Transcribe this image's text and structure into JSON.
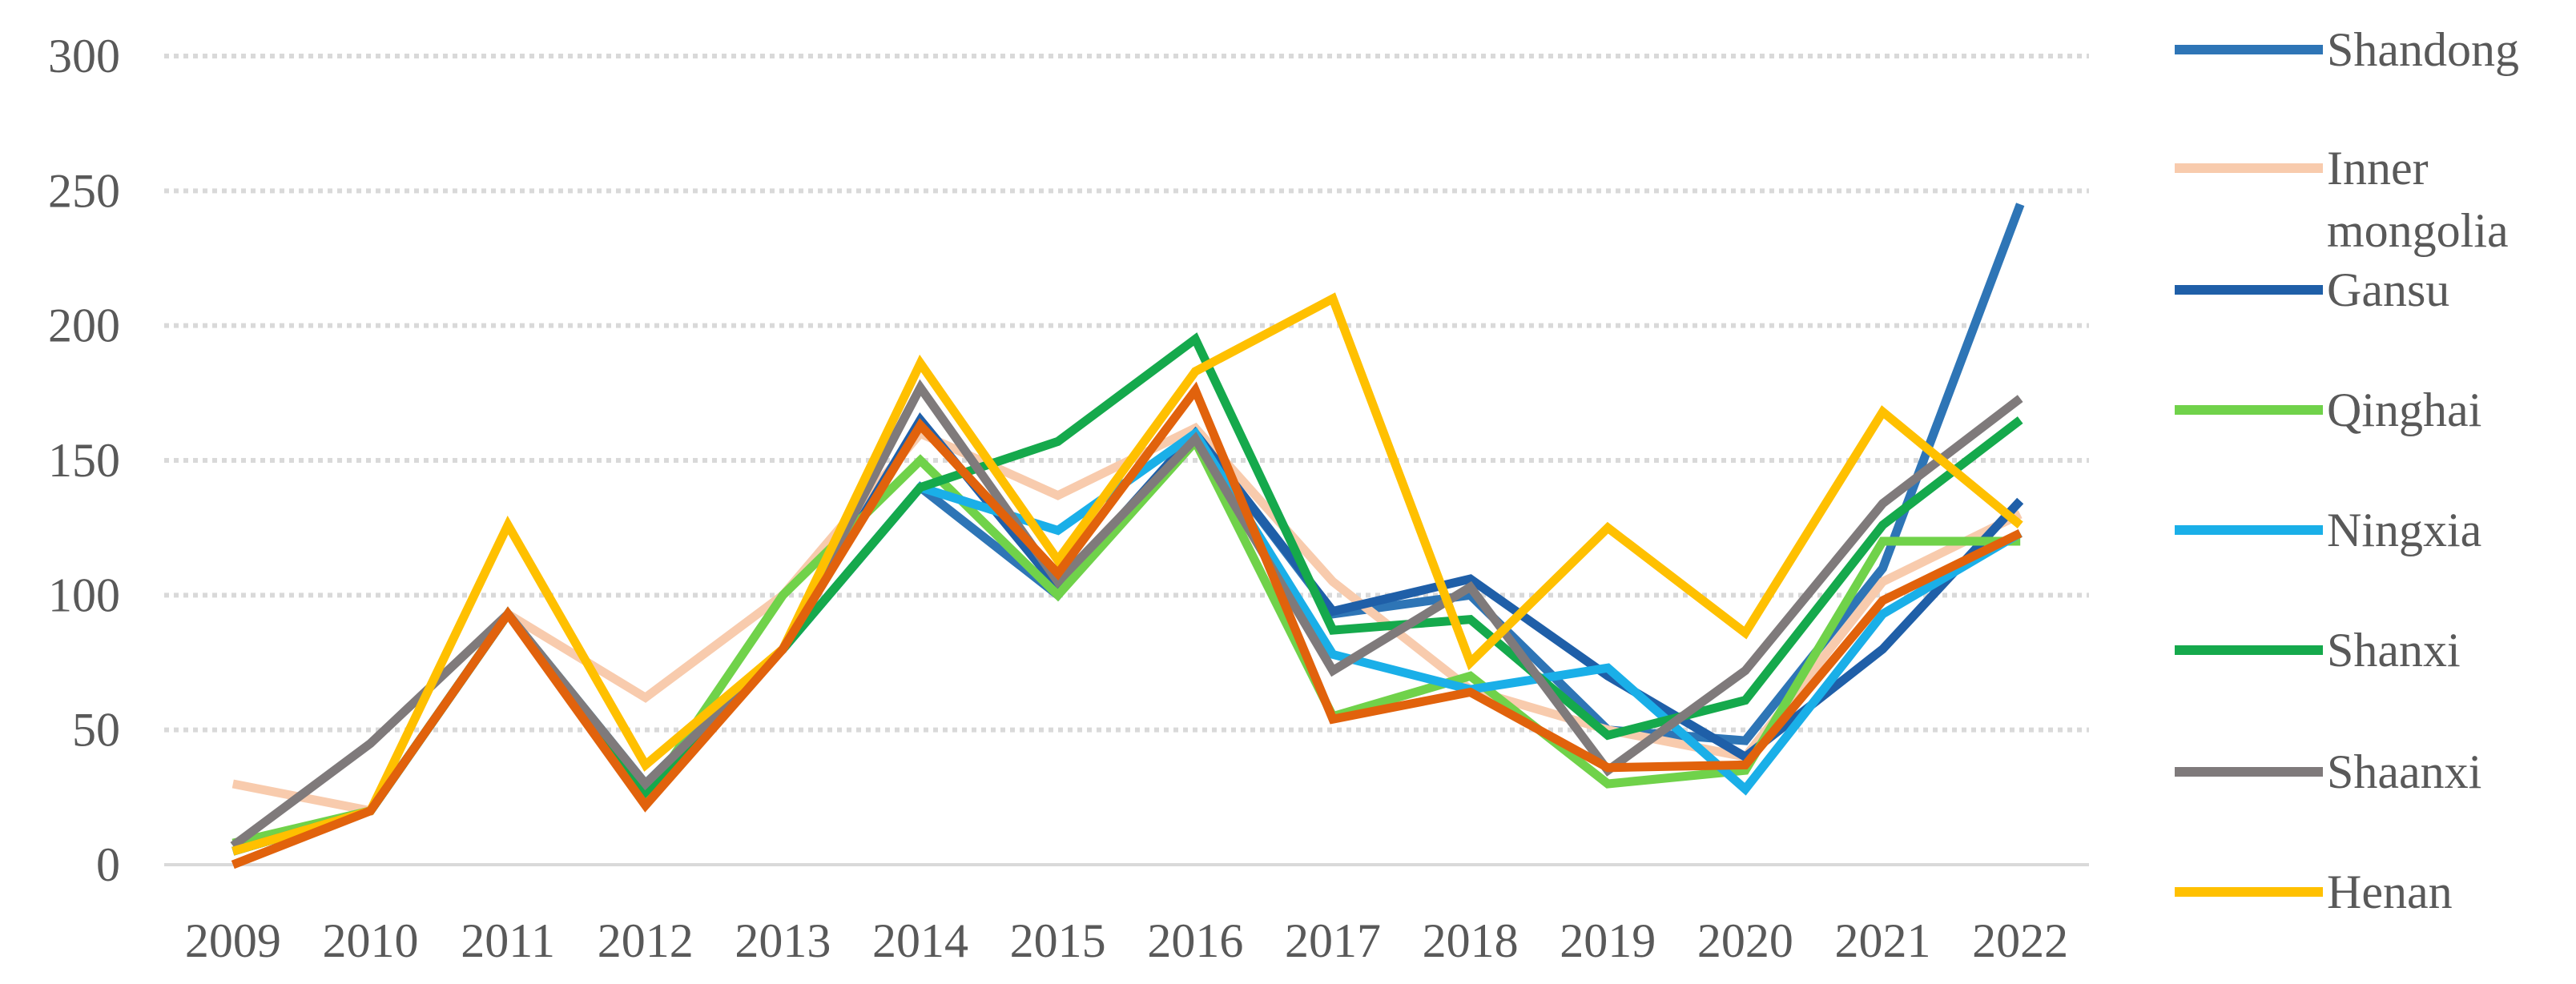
{
  "chart_data": {
    "type": "line",
    "title": "",
    "xlabel": "",
    "ylabel": "",
    "ylim": [
      0,
      300
    ],
    "yticks": [
      0,
      50,
      100,
      150,
      200,
      250,
      300
    ],
    "grid": "horizontal dotted",
    "legend_position": "right",
    "categories": [
      "2009",
      "2010",
      "2011",
      "2012",
      "2013",
      "2014",
      "2015",
      "2016",
      "2017",
      "2018",
      "2019",
      "2020",
      "2021",
      "2022"
    ],
    "series": [
      {
        "name": "Shandong",
        "color": "#2E75B6",
        "values": [
          5,
          20,
          93,
          30,
          80,
          140,
          100,
          160,
          93,
          100,
          50,
          46,
          110,
          245
        ]
      },
      {
        "name": "Inner mongolia",
        "color": "#F8CBAD",
        "values": [
          30,
          20,
          93,
          62,
          100,
          160,
          137,
          162,
          105,
          65,
          50,
          40,
          105,
          130
        ]
      },
      {
        "name": "Gansu",
        "color": "#1F5FA8",
        "values": [
          5,
          20,
          93,
          27,
          80,
          165,
          103,
          160,
          94,
          106,
          70,
          40,
          80,
          135
        ]
      },
      {
        "name": "Qinghai",
        "color": "#70D24A",
        "values": [
          8,
          20,
          93,
          25,
          100,
          150,
          100,
          157,
          55,
          70,
          30,
          35,
          120,
          120
        ]
      },
      {
        "name": "Ningxia",
        "color": "#1AAFE8",
        "values": [
          5,
          20,
          93,
          30,
          80,
          140,
          124,
          160,
          78,
          65,
          73,
          28,
          93,
          123
        ]
      },
      {
        "name": "Shanxi",
        "color": "#15A94C",
        "values": [
          5,
          20,
          93,
          27,
          80,
          140,
          157,
          195,
          87,
          91,
          48,
          61,
          126,
          165
        ]
      },
      {
        "name": "Shaanxi",
        "color": "#7F7A7B",
        "values": [
          7,
          45,
          93,
          30,
          80,
          177,
          105,
          158,
          72,
          103,
          35,
          72,
          134,
          173
        ]
      },
      {
        "name": "Henan",
        "color": "#FFC000",
        "values": [
          5,
          20,
          126,
          37,
          80,
          186,
          113,
          183,
          210,
          75,
          125,
          86,
          168,
          126
        ]
      },
      {
        "name": "",
        "color": "#E1620C",
        "values": [
          0,
          20,
          93,
          22,
          80,
          163,
          108,
          176,
          54,
          64,
          36,
          37,
          98,
          123
        ]
      }
    ]
  }
}
